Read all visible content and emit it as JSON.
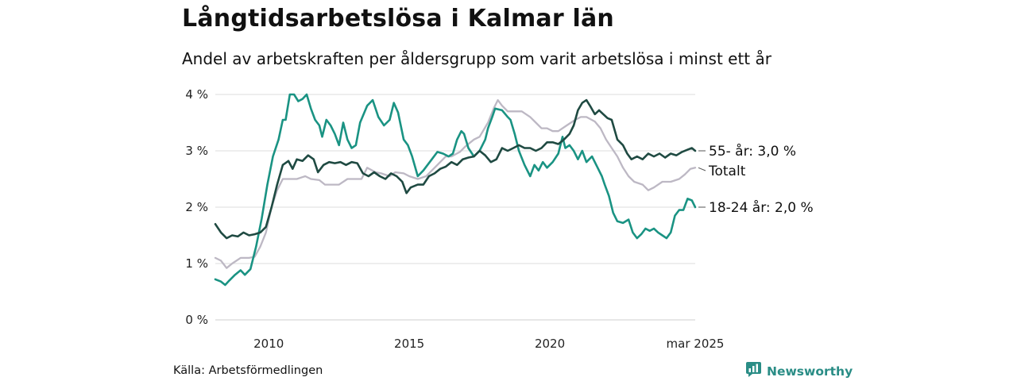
{
  "header": {
    "title": "Långtidsarbetslösa i Kalmar län",
    "subtitle": "Andel av arbetskraften per åldersgrupp som varit arbetslösa i minst ett år"
  },
  "footer": {
    "source": "Källa: Arbetsförmedlingen",
    "brand": "Newsworthy"
  },
  "colors": {
    "age_55_plus": "#1f4a42",
    "total": "#bdb8c4",
    "age_18_24": "#1a9383",
    "grid": "#dddddd",
    "brand": "#2a8d86"
  },
  "chart_data": {
    "type": "line",
    "x_ticks": [
      {
        "value": 2010,
        "label": "2010"
      },
      {
        "value": 2015,
        "label": "2015"
      },
      {
        "value": 2020,
        "label": "2020"
      },
      {
        "value": 2025.17,
        "label": "mar 2025"
      }
    ],
    "y_ticks": [
      {
        "value": 0,
        "label": "0 %"
      },
      {
        "value": 1,
        "label": "1 %"
      },
      {
        "value": 2,
        "label": "2 %"
      },
      {
        "value": 3,
        "label": "3 %"
      },
      {
        "value": 4,
        "label": "4 %"
      }
    ],
    "xlim": [
      2008.1,
      2025.17
    ],
    "ylim": [
      0,
      4
    ],
    "grid": true,
    "series": [
      {
        "name": "Totalt",
        "key": "total",
        "end_label": "Totalt",
        "points": [
          [
            2008.1,
            1.1
          ],
          [
            2008.3,
            1.05
          ],
          [
            2008.5,
            0.92
          ],
          [
            2008.7,
            1.0
          ],
          [
            2009.0,
            1.1
          ],
          [
            2009.3,
            1.1
          ],
          [
            2009.5,
            1.12
          ],
          [
            2009.7,
            1.3
          ],
          [
            2009.9,
            1.55
          ],
          [
            2010.1,
            2.0
          ],
          [
            2010.3,
            2.3
          ],
          [
            2010.5,
            2.5
          ],
          [
            2010.8,
            2.5
          ],
          [
            2011.0,
            2.5
          ],
          [
            2011.3,
            2.55
          ],
          [
            2011.5,
            2.5
          ],
          [
            2011.8,
            2.48
          ],
          [
            2012.0,
            2.4
          ],
          [
            2012.5,
            2.4
          ],
          [
            2012.8,
            2.5
          ],
          [
            2013.0,
            2.5
          ],
          [
            2013.3,
            2.5
          ],
          [
            2013.5,
            2.7
          ],
          [
            2013.8,
            2.62
          ],
          [
            2014.0,
            2.6
          ],
          [
            2014.3,
            2.55
          ],
          [
            2014.5,
            2.62
          ],
          [
            2014.8,
            2.6
          ],
          [
            2015.0,
            2.55
          ],
          [
            2015.3,
            2.5
          ],
          [
            2015.6,
            2.55
          ],
          [
            2015.8,
            2.65
          ],
          [
            2016.0,
            2.75
          ],
          [
            2016.3,
            2.9
          ],
          [
            2016.5,
            2.9
          ],
          [
            2016.8,
            2.98
          ],
          [
            2017.0,
            3.08
          ],
          [
            2017.3,
            3.2
          ],
          [
            2017.5,
            3.25
          ],
          [
            2017.8,
            3.5
          ],
          [
            2018.0,
            3.75
          ],
          [
            2018.15,
            3.9
          ],
          [
            2018.3,
            3.8
          ],
          [
            2018.5,
            3.7
          ],
          [
            2019.0,
            3.7
          ],
          [
            2019.3,
            3.6
          ],
          [
            2019.5,
            3.5
          ],
          [
            2019.7,
            3.4
          ],
          [
            2019.9,
            3.4
          ],
          [
            2020.1,
            3.35
          ],
          [
            2020.3,
            3.35
          ],
          [
            2020.6,
            3.45
          ],
          [
            2020.9,
            3.55
          ],
          [
            2021.1,
            3.6
          ],
          [
            2021.3,
            3.6
          ],
          [
            2021.6,
            3.52
          ],
          [
            2021.8,
            3.4
          ],
          [
            2022.0,
            3.2
          ],
          [
            2022.2,
            3.05
          ],
          [
            2022.4,
            2.9
          ],
          [
            2022.6,
            2.7
          ],
          [
            2022.8,
            2.55
          ],
          [
            2023.0,
            2.45
          ],
          [
            2023.3,
            2.4
          ],
          [
            2023.5,
            2.3
          ],
          [
            2023.7,
            2.35
          ],
          [
            2024.0,
            2.45
          ],
          [
            2024.3,
            2.45
          ],
          [
            2024.6,
            2.5
          ],
          [
            2024.8,
            2.58
          ],
          [
            2025.0,
            2.68
          ],
          [
            2025.17,
            2.7
          ]
        ]
      },
      {
        "name": "18-24 år",
        "key": "age_18_24",
        "end_label": "18-24 år: 2,0 %",
        "points": [
          [
            2008.1,
            0.72
          ],
          [
            2008.3,
            0.68
          ],
          [
            2008.45,
            0.62
          ],
          [
            2008.6,
            0.7
          ],
          [
            2008.8,
            0.8
          ],
          [
            2009.0,
            0.88
          ],
          [
            2009.15,
            0.8
          ],
          [
            2009.35,
            0.9
          ],
          [
            2009.55,
            1.3
          ],
          [
            2009.75,
            1.8
          ],
          [
            2009.95,
            2.4
          ],
          [
            2010.15,
            2.9
          ],
          [
            2010.35,
            3.2
          ],
          [
            2010.5,
            3.55
          ],
          [
            2010.6,
            3.55
          ],
          [
            2010.75,
            4.0
          ],
          [
            2010.9,
            4.0
          ],
          [
            2011.05,
            3.88
          ],
          [
            2011.2,
            3.92
          ],
          [
            2011.35,
            4.0
          ],
          [
            2011.5,
            3.75
          ],
          [
            2011.65,
            3.55
          ],
          [
            2011.8,
            3.45
          ],
          [
            2011.9,
            3.25
          ],
          [
            2012.05,
            3.55
          ],
          [
            2012.2,
            3.45
          ],
          [
            2012.35,
            3.3
          ],
          [
            2012.5,
            3.1
          ],
          [
            2012.65,
            3.5
          ],
          [
            2012.8,
            3.2
          ],
          [
            2012.95,
            3.05
          ],
          [
            2013.1,
            3.1
          ],
          [
            2013.25,
            3.5
          ],
          [
            2013.5,
            3.8
          ],
          [
            2013.7,
            3.9
          ],
          [
            2013.9,
            3.6
          ],
          [
            2014.1,
            3.45
          ],
          [
            2014.3,
            3.55
          ],
          [
            2014.45,
            3.85
          ],
          [
            2014.6,
            3.68
          ],
          [
            2014.8,
            3.2
          ],
          [
            2014.95,
            3.1
          ],
          [
            2015.1,
            2.9
          ],
          [
            2015.3,
            2.55
          ],
          [
            2015.5,
            2.65
          ],
          [
            2015.65,
            2.75
          ],
          [
            2015.8,
            2.85
          ],
          [
            2016.0,
            2.98
          ],
          [
            2016.2,
            2.95
          ],
          [
            2016.4,
            2.9
          ],
          [
            2016.55,
            2.95
          ],
          [
            2016.7,
            3.2
          ],
          [
            2016.85,
            3.35
          ],
          [
            2016.95,
            3.3
          ],
          [
            2017.1,
            3.05
          ],
          [
            2017.3,
            2.9
          ],
          [
            2017.5,
            3.0
          ],
          [
            2017.7,
            3.2
          ],
          [
            2017.8,
            3.4
          ],
          [
            2017.95,
            3.6
          ],
          [
            2018.05,
            3.75
          ],
          [
            2018.3,
            3.72
          ],
          [
            2018.5,
            3.6
          ],
          [
            2018.6,
            3.55
          ],
          [
            2018.75,
            3.3
          ],
          [
            2018.9,
            3.0
          ],
          [
            2019.1,
            2.75
          ],
          [
            2019.3,
            2.55
          ],
          [
            2019.45,
            2.75
          ],
          [
            2019.6,
            2.65
          ],
          [
            2019.75,
            2.8
          ],
          [
            2019.9,
            2.7
          ],
          [
            2020.1,
            2.8
          ],
          [
            2020.3,
            2.95
          ],
          [
            2020.45,
            3.25
          ],
          [
            2020.55,
            3.05
          ],
          [
            2020.7,
            3.1
          ],
          [
            2020.85,
            3.0
          ],
          [
            2021.0,
            2.85
          ],
          [
            2021.15,
            3.0
          ],
          [
            2021.3,
            2.8
          ],
          [
            2021.5,
            2.9
          ],
          [
            2021.7,
            2.7
          ],
          [
            2021.85,
            2.55
          ],
          [
            2021.95,
            2.4
          ],
          [
            2022.1,
            2.2
          ],
          [
            2022.25,
            1.9
          ],
          [
            2022.4,
            1.75
          ],
          [
            2022.6,
            1.72
          ],
          [
            2022.8,
            1.78
          ],
          [
            2022.95,
            1.55
          ],
          [
            2023.1,
            1.45
          ],
          [
            2023.25,
            1.52
          ],
          [
            2023.4,
            1.62
          ],
          [
            2023.55,
            1.58
          ],
          [
            2023.7,
            1.62
          ],
          [
            2023.85,
            1.55
          ],
          [
            2024.0,
            1.5
          ],
          [
            2024.15,
            1.45
          ],
          [
            2024.3,
            1.55
          ],
          [
            2024.45,
            1.85
          ],
          [
            2024.6,
            1.95
          ],
          [
            2024.75,
            1.95
          ],
          [
            2024.9,
            2.15
          ],
          [
            2025.05,
            2.12
          ],
          [
            2025.17,
            2.0
          ]
        ]
      },
      {
        "name": "55- år",
        "key": "age_55_plus",
        "end_label": "55- år: 3,0 %",
        "points": [
          [
            2008.1,
            1.7
          ],
          [
            2008.3,
            1.55
          ],
          [
            2008.5,
            1.45
          ],
          [
            2008.7,
            1.5
          ],
          [
            2008.9,
            1.48
          ],
          [
            2009.1,
            1.55
          ],
          [
            2009.3,
            1.5
          ],
          [
            2009.5,
            1.52
          ],
          [
            2009.7,
            1.55
          ],
          [
            2009.9,
            1.65
          ],
          [
            2010.1,
            2.0
          ],
          [
            2010.3,
            2.4
          ],
          [
            2010.5,
            2.75
          ],
          [
            2010.7,
            2.82
          ],
          [
            2010.85,
            2.68
          ],
          [
            2011.0,
            2.85
          ],
          [
            2011.2,
            2.82
          ],
          [
            2011.4,
            2.92
          ],
          [
            2011.6,
            2.85
          ],
          [
            2011.75,
            2.62
          ],
          [
            2011.95,
            2.75
          ],
          [
            2012.15,
            2.8
          ],
          [
            2012.35,
            2.78
          ],
          [
            2012.55,
            2.8
          ],
          [
            2012.75,
            2.75
          ],
          [
            2012.95,
            2.8
          ],
          [
            2013.15,
            2.78
          ],
          [
            2013.35,
            2.6
          ],
          [
            2013.55,
            2.55
          ],
          [
            2013.75,
            2.62
          ],
          [
            2013.95,
            2.55
          ],
          [
            2014.15,
            2.5
          ],
          [
            2014.35,
            2.6
          ],
          [
            2014.55,
            2.55
          ],
          [
            2014.75,
            2.45
          ],
          [
            2014.9,
            2.25
          ],
          [
            2015.05,
            2.35
          ],
          [
            2015.3,
            2.4
          ],
          [
            2015.5,
            2.4
          ],
          [
            2015.7,
            2.55
          ],
          [
            2015.9,
            2.6
          ],
          [
            2016.1,
            2.68
          ],
          [
            2016.3,
            2.72
          ],
          [
            2016.5,
            2.8
          ],
          [
            2016.7,
            2.75
          ],
          [
            2016.9,
            2.85
          ],
          [
            2017.1,
            2.88
          ],
          [
            2017.3,
            2.9
          ],
          [
            2017.5,
            3.0
          ],
          [
            2017.7,
            2.92
          ],
          [
            2017.9,
            2.8
          ],
          [
            2018.1,
            2.85
          ],
          [
            2018.3,
            3.05
          ],
          [
            2018.5,
            3.0
          ],
          [
            2018.7,
            3.05
          ],
          [
            2018.9,
            3.1
          ],
          [
            2019.1,
            3.05
          ],
          [
            2019.3,
            3.05
          ],
          [
            2019.5,
            3.0
          ],
          [
            2019.7,
            3.05
          ],
          [
            2019.9,
            3.15
          ],
          [
            2020.1,
            3.15
          ],
          [
            2020.3,
            3.12
          ],
          [
            2020.5,
            3.2
          ],
          [
            2020.7,
            3.3
          ],
          [
            2020.85,
            3.45
          ],
          [
            2021.0,
            3.72
          ],
          [
            2021.15,
            3.85
          ],
          [
            2021.3,
            3.9
          ],
          [
            2021.45,
            3.78
          ],
          [
            2021.6,
            3.65
          ],
          [
            2021.75,
            3.72
          ],
          [
            2021.9,
            3.65
          ],
          [
            2022.05,
            3.58
          ],
          [
            2022.2,
            3.55
          ],
          [
            2022.4,
            3.2
          ],
          [
            2022.6,
            3.1
          ],
          [
            2022.75,
            2.95
          ],
          [
            2022.9,
            2.85
          ],
          [
            2023.1,
            2.9
          ],
          [
            2023.3,
            2.85
          ],
          [
            2023.5,
            2.95
          ],
          [
            2023.7,
            2.9
          ],
          [
            2023.9,
            2.95
          ],
          [
            2024.1,
            2.88
          ],
          [
            2024.3,
            2.95
          ],
          [
            2024.5,
            2.92
          ],
          [
            2024.7,
            2.98
          ],
          [
            2024.9,
            3.02
          ],
          [
            2025.05,
            3.05
          ],
          [
            2025.17,
            3.0
          ]
        ]
      }
    ]
  }
}
